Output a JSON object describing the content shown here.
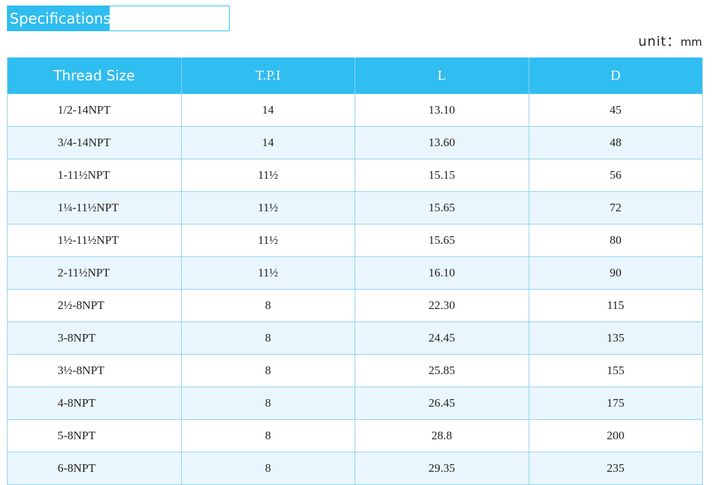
{
  "header": {
    "title": "Specifications",
    "unit_label": "unit：",
    "unit": "mm"
  },
  "table": {
    "columns": [
      "Thread Size",
      "T.P.I",
      "L",
      "D"
    ],
    "rows": [
      [
        "1/2-14NPT",
        "14",
        "13.10",
        "45"
      ],
      [
        "3/4-14NPT",
        "14",
        "13.60",
        "48"
      ],
      [
        "1-11½NPT",
        "11½",
        "15.15",
        "56"
      ],
      [
        "1¼-11½NPT",
        "11½",
        "15.65",
        "72"
      ],
      [
        "1½-11½NPT",
        "11½",
        "15.65",
        "80"
      ],
      [
        "2-11½NPT",
        "11½",
        "16.10",
        "90"
      ],
      [
        "2½-8NPT",
        "8",
        "22.30",
        "115"
      ],
      [
        "3-8NPT",
        "8",
        "24.45",
        "135"
      ],
      [
        "3½-8NPT",
        "8",
        "25.85",
        "155"
      ],
      [
        "4-8NPT",
        "8",
        "26.45",
        "175"
      ],
      [
        "5-8NPT",
        "8",
        "28.8",
        "200"
      ],
      [
        "6-8NPT",
        "8",
        "29.35",
        "235"
      ]
    ]
  }
}
